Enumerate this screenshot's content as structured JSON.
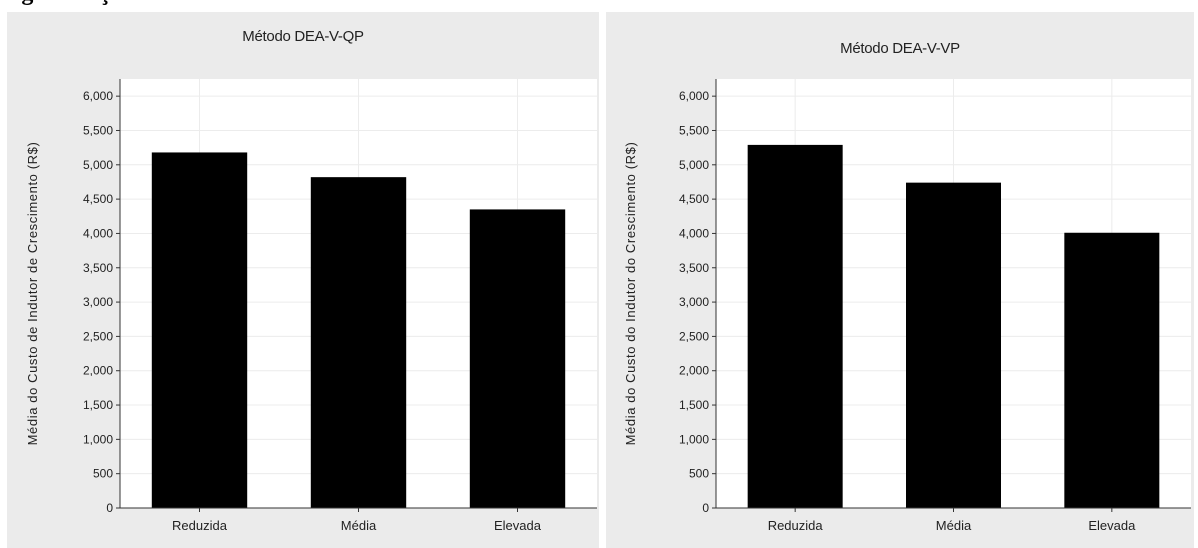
{
  "figure": {
    "caption": "Figura ... ção"
  },
  "chart_data": [
    {
      "type": "bar",
      "title": "Método DEA-V-QP",
      "xlabel": "",
      "ylabel": "Média do Custo de Indutor de Crescimento (R$)",
      "categories": [
        "Reduzida",
        "Média",
        "Elevada"
      ],
      "values": [
        5180,
        4820,
        4350
      ],
      "ylim": [
        0,
        6250
      ],
      "yticks": [
        0,
        500,
        1000,
        1500,
        2000,
        2500,
        3000,
        3500,
        4000,
        4500,
        5000,
        5500,
        6000
      ],
      "ytick_labels": [
        "0",
        "500",
        "1,000",
        "1,500",
        "2,000",
        "2,500",
        "3,000",
        "3,500",
        "4,000",
        "4,500",
        "5,000",
        "5,500",
        "6,000"
      ],
      "grid": true,
      "bar_color": "#000000",
      "background": "#ffffff"
    },
    {
      "type": "bar",
      "title": "Método DEA-V-VP",
      "xlabel": "",
      "ylabel": "Média do Custo do Indutor do Crescimento (R$)",
      "categories": [
        "Reduzida",
        "Média",
        "Elevada"
      ],
      "values": [
        5290,
        4740,
        4010
      ],
      "ylim": [
        0,
        6250
      ],
      "yticks": [
        0,
        500,
        1000,
        1500,
        2000,
        2500,
        3000,
        3500,
        4000,
        4500,
        5000,
        5500,
        6000
      ],
      "ytick_labels": [
        "0",
        "500",
        "1,000",
        "1,500",
        "2,000",
        "2,500",
        "3,000",
        "3,500",
        "4,000",
        "4,500",
        "5,000",
        "5,500",
        "6,000"
      ],
      "grid": true,
      "bar_color": "#000000",
      "background": "#ffffff"
    }
  ]
}
